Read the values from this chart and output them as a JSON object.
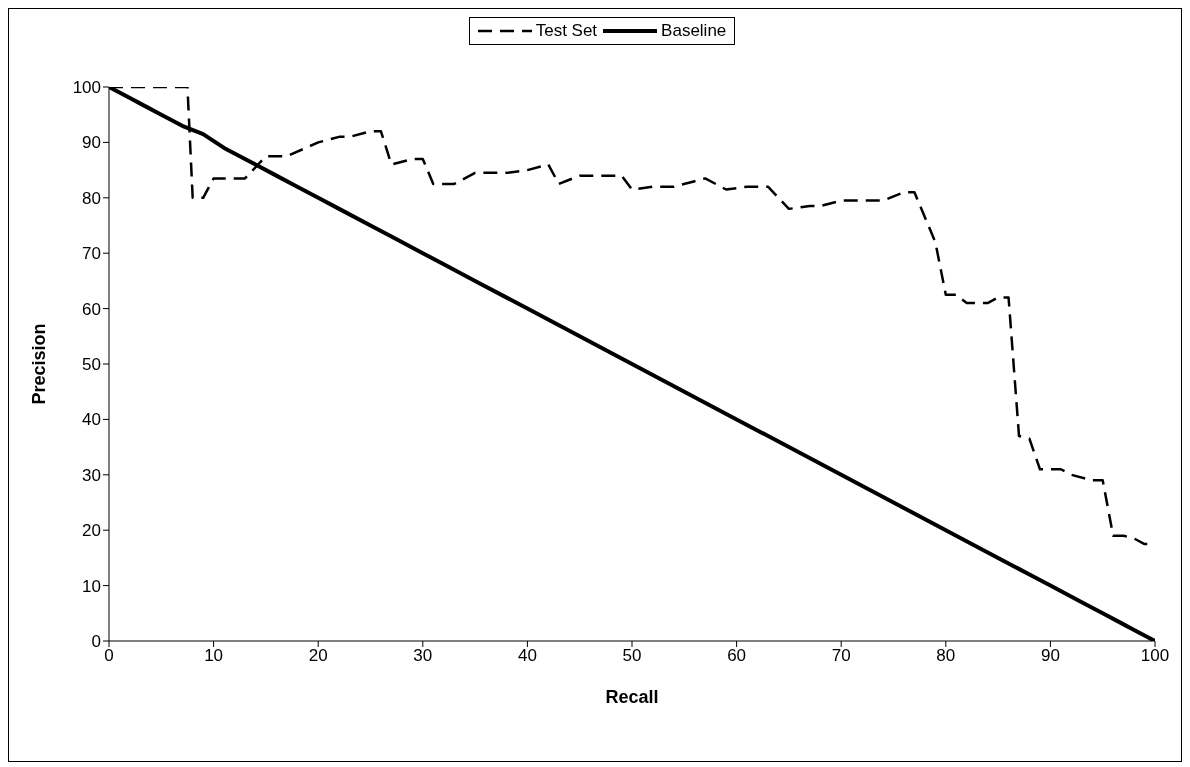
{
  "chart_data": {
    "type": "line",
    "xlabel": "Recall",
    "ylabel": "Precision",
    "xlim": [
      0,
      100
    ],
    "xticks": [
      0,
      10,
      20,
      30,
      40,
      50,
      60,
      70,
      80,
      90,
      100
    ],
    "ylim": [
      0,
      100
    ],
    "yticks": [
      0,
      10,
      20,
      30,
      40,
      50,
      60,
      70,
      80,
      90,
      100
    ],
    "grid": false,
    "legend": "top",
    "marker": "none",
    "series": [
      {
        "name": "Test Set",
        "color": "#000000",
        "line_style": "dashed",
        "x": [
          0,
          7.5,
          8,
          9,
          10,
          13,
          15,
          17,
          20,
          22,
          23,
          25,
          26,
          27,
          29,
          30,
          31,
          33,
          35,
          38,
          40,
          42,
          43,
          45,
          49,
          50,
          52,
          54,
          56,
          57,
          59,
          61,
          63,
          65,
          67,
          68,
          70,
          74,
          76,
          77,
          79,
          80,
          81,
          82,
          84,
          85,
          86,
          87,
          88,
          89,
          91,
          92,
          94,
          95,
          96,
          97,
          98,
          99,
          100
        ],
        "values": [
          100,
          100,
          80,
          80,
          83.5,
          83.5,
          87.5,
          87.5,
          90,
          91,
          91,
          92,
          92,
          86,
          87,
          87,
          82.5,
          82.5,
          84.5,
          84.5,
          85,
          86,
          82.5,
          84,
          84,
          81.5,
          82,
          82,
          83,
          83.5,
          81.5,
          82,
          82,
          78,
          78.5,
          78.5,
          79.5,
          79.5,
          81,
          81,
          72,
          62.5,
          62.5,
          61,
          61,
          62,
          62,
          37,
          36.5,
          31,
          31,
          30,
          29,
          29,
          19,
          19,
          18.5,
          17.5,
          17.5
        ]
      },
      {
        "name": "Baseline",
        "color": "#000000",
        "line_style": "solid",
        "x": [
          0,
          2,
          3,
          5,
          7,
          9,
          11,
          12,
          14,
          16,
          18,
          20,
          22,
          25,
          27,
          30,
          32,
          35,
          40,
          45,
          50,
          55,
          60,
          65,
          70,
          75,
          80,
          85,
          88,
          90,
          93,
          95,
          97,
          98,
          100
        ],
        "values": [
          100,
          98,
          97,
          95,
          93,
          91.5,
          89,
          88,
          86,
          84,
          82,
          80,
          78,
          75,
          73,
          70,
          68,
          65,
          60,
          55,
          50,
          45,
          40,
          35,
          30,
          25,
          20,
          15,
          12,
          10,
          7,
          5,
          3,
          2,
          0
        ]
      }
    ]
  }
}
